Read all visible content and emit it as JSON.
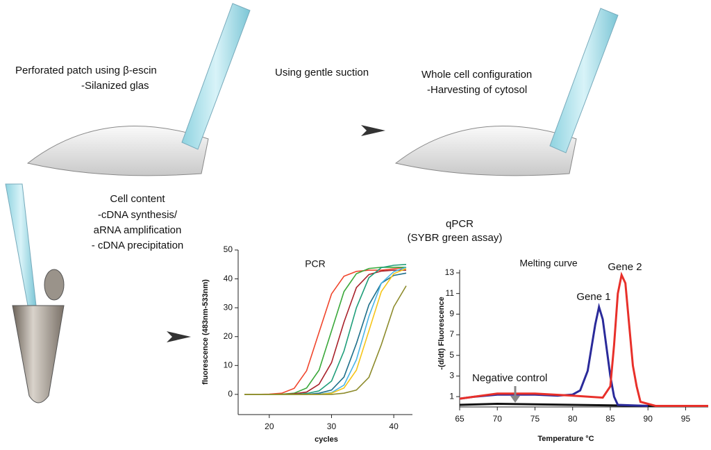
{
  "diagram": {
    "step1": [
      "Perforated patch using β-escin",
      "-Silanized glas"
    ],
    "step2": [
      "Using gentle suction"
    ],
    "step3": [
      "Whole cell configuration",
      "-Harvesting of cytosol"
    ],
    "step4": [
      "Cell content",
      "-cDNA synthesis/",
      "aRNA amplification",
      "- cDNA precipitation"
    ],
    "step5": [
      "qPCR",
      "(SYBR green assay)"
    ]
  },
  "chart_data": [
    {
      "type": "line",
      "title": "PCR",
      "x_label": "cycles",
      "y_label": "fluorescence (483nm-533nm)",
      "x": [
        16,
        18,
        20,
        22,
        24,
        26,
        28,
        30,
        32,
        34,
        36,
        38,
        40,
        42
      ],
      "xlim": [
        15,
        43
      ],
      "xticks": [
        20,
        30,
        40
      ],
      "ylim": [
        -7,
        50
      ],
      "yticks": [
        0,
        10,
        20,
        30,
        40,
        50
      ],
      "series": [
        {
          "color": "#f0452c",
          "values": [
            0,
            0,
            0.1,
            0.4,
            2.1,
            8.2,
            21.5,
            34.8,
            40.9,
            42.6,
            43,
            43,
            43.5,
            44
          ]
        },
        {
          "color": "#3aa83a",
          "values": [
            0,
            0,
            0,
            0.1,
            0.4,
            2.2,
            8.4,
            22,
            35.6,
            41.8,
            43.6,
            44,
            44,
            44
          ]
        },
        {
          "color": "#a8202a",
          "values": [
            0,
            0,
            0,
            0,
            0.2,
            0.8,
            3.5,
            11,
            25,
            37,
            41.5,
            42.7,
            43,
            43
          ]
        },
        {
          "color": "#1f9e7a",
          "values": [
            0,
            0,
            0,
            0,
            0,
            0.3,
            1.2,
            4.6,
            15,
            30,
            40.4,
            43.9,
            44.7,
            45
          ]
        },
        {
          "color": "#1e6f8a",
          "values": [
            0,
            0,
            0,
            0,
            0,
            0,
            0.4,
            1.5,
            6,
            17.6,
            31,
            38.5,
            41.2,
            42
          ]
        },
        {
          "color": "#49b4e6",
          "values": [
            0,
            0,
            0,
            0,
            0,
            0,
            0.1,
            0.6,
            3.2,
            12,
            27,
            38.5,
            42.5,
            44
          ]
        },
        {
          "color": "#f5c518",
          "values": [
            0,
            0,
            0,
            0,
            0,
            0,
            0,
            0.4,
            2.2,
            8.4,
            22,
            35.6,
            41.8,
            43.6
          ]
        },
        {
          "color": "#8c8a2a",
          "values": [
            0,
            0,
            0,
            0,
            0,
            0,
            0,
            0,
            0.4,
            1.5,
            5.9,
            17.2,
            30.3,
            37.6
          ]
        }
      ]
    },
    {
      "type": "line",
      "title": "Melting curve",
      "x_label": "Temperature °C",
      "y_label": "-(d/dt) Fluorescence",
      "xlim": [
        65,
        98
      ],
      "xticks": [
        65,
        70,
        75,
        80,
        85,
        90,
        95
      ],
      "ylim": [
        0,
        13.3
      ],
      "yticks": [
        1,
        3,
        5,
        7,
        9,
        11,
        13
      ],
      "series": [
        {
          "name": "Negative control",
          "color": "#111111",
          "x": [
            65,
            70,
            80,
            90,
            98
          ],
          "values": [
            0.2,
            0.3,
            0.2,
            0.1,
            0.1
          ]
        },
        {
          "name": "Gene 1",
          "color": "#2a2a9a",
          "x": [
            65,
            67,
            70,
            75,
            78,
            80,
            81,
            82,
            83,
            83.5,
            84,
            85,
            85.5,
            86,
            90
          ],
          "values": [
            0.8,
            1,
            1.2,
            1.2,
            1.1,
            1.2,
            1.6,
            3.5,
            8,
            9.7,
            8.5,
            3,
            1,
            0.2,
            0.1
          ]
        },
        {
          "name": "Gene 2",
          "color": "#e8302a",
          "x": [
            65,
            70,
            75,
            80,
            84,
            85,
            85.5,
            86,
            86.5,
            87,
            87.5,
            88,
            88.5,
            89,
            91,
            95,
            98
          ],
          "values": [
            0.8,
            1.3,
            1.3,
            1.1,
            0.9,
            2,
            6,
            11,
            12.8,
            12,
            8,
            4,
            2,
            0.5,
            0.1,
            0.1,
            0.1
          ]
        }
      ]
    }
  ]
}
